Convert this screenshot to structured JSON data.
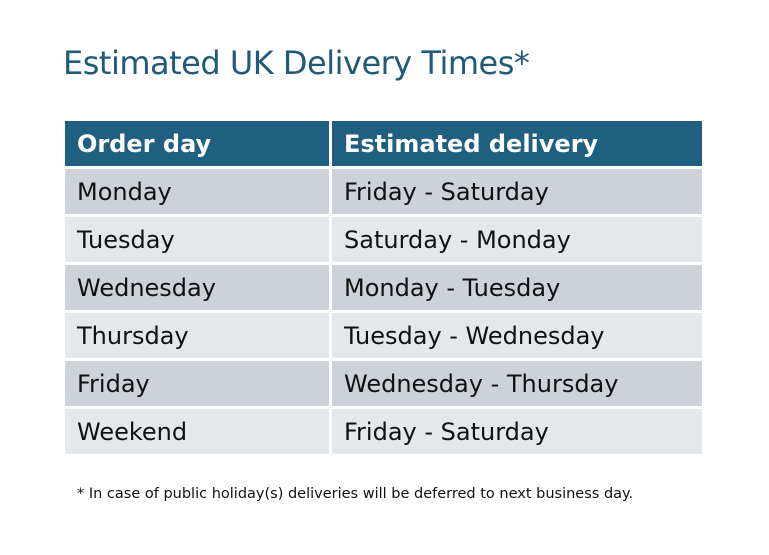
{
  "title": "Estimated UK Delivery Times*",
  "table": {
    "headers": [
      "Order day",
      "Estimated delivery"
    ],
    "rows": [
      [
        "Monday",
        "Friday - Saturday"
      ],
      [
        "Tuesday",
        "Saturday - Monday"
      ],
      [
        "Wednesday",
        "Monday - Tuesday"
      ],
      [
        "Thursday",
        "Tuesday - Wednesday"
      ],
      [
        "Friday",
        "Wednesday - Thursday"
      ],
      [
        "Weekend",
        "Friday - Saturday"
      ]
    ]
  },
  "footnote": "* In case of public holiday(s) deliveries will be deferred to next business day.",
  "colors": {
    "header": "#1f6080",
    "title": "#1f5a78",
    "row_odd": "#cdd1d8",
    "row_even": "#e5e8eb"
  }
}
